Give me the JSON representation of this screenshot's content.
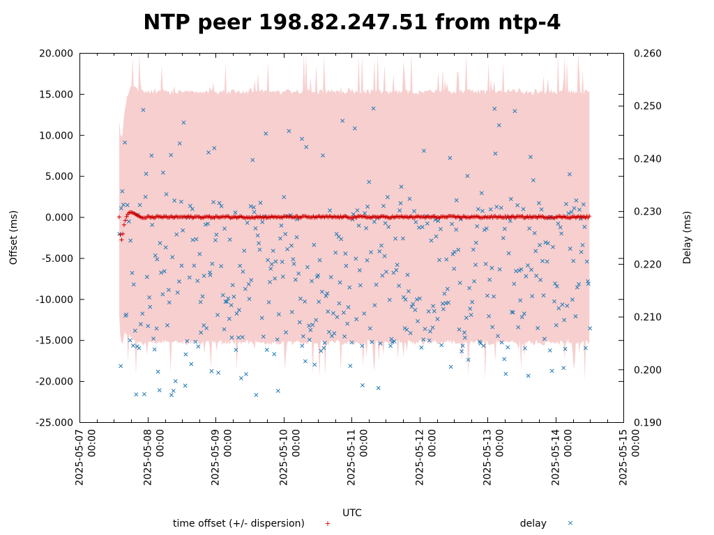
{
  "chart_data": {
    "type": "scatter",
    "title": "NTP peer 198.82.247.51 from ntp-4",
    "xlabel": "UTC",
    "ylabel": "Offset (ms)",
    "y2label": "Delay (ms)",
    "xlim": [
      "2025-05-07 00:00",
      "2025-05-15 00:00"
    ],
    "x_ticks": [
      {
        "date": "2025-05-07",
        "time": "00:00"
      },
      {
        "date": "2025-05-08",
        "time": "00:00"
      },
      {
        "date": "2025-05-09",
        "time": "00:00"
      },
      {
        "date": "2025-05-10",
        "time": "00:00"
      },
      {
        "date": "2025-05-11",
        "time": "00:00"
      },
      {
        "date": "2025-05-12",
        "time": "00:00"
      },
      {
        "date": "2025-05-13",
        "time": "00:00"
      },
      {
        "date": "2025-05-14",
        "time": "00:00"
      },
      {
        "date": "2025-05-15",
        "time": "00:00"
      }
    ],
    "ylim": [
      -25,
      20
    ],
    "y_ticks": [
      "20.000",
      "15.000",
      "10.000",
      "5.000",
      "0.000",
      "-5.000",
      "-10.000",
      "-15.000",
      "-20.000",
      "-25.000"
    ],
    "y2lim": [
      0.19,
      0.26
    ],
    "y2_ticks": [
      "0.260",
      "0.250",
      "0.240",
      "0.230",
      "0.220",
      "0.210",
      "0.200",
      "0.190"
    ],
    "grid": false,
    "legend_position": "bottom",
    "series": [
      {
        "name": "time offset (+/- dispersion)",
        "marker": "+",
        "color": "#cc0000",
        "band_color": "#f7cfcf",
        "axis": "left",
        "data_range": [
          "2025-05-07 14:00",
          "2025-05-14 12:00"
        ],
        "startup_points": [
          {
            "x": "2025-05-07 14:00",
            "y": 0.0
          },
          {
            "x": "2025-05-07 14:10",
            "y": -1.1
          },
          {
            "x": "2025-05-07 14:30",
            "y": -2.4
          },
          {
            "x": "2025-05-07 14:50",
            "y": -2.8
          },
          {
            "x": "2025-05-07 15:10",
            "y": -2.6
          },
          {
            "x": "2025-05-07 15:30",
            "y": -1.3
          },
          {
            "x": "2025-05-07 16:00",
            "y": -0.6
          },
          {
            "x": "2025-05-07 16:40",
            "y": 0.1
          },
          {
            "x": "2025-05-07 17:20",
            "y": 0.5
          },
          {
            "x": "2025-05-07 18:00",
            "y": 0.6
          },
          {
            "x": "2025-05-07 19:00",
            "y": 0.5
          },
          {
            "x": "2025-05-07 20:00",
            "y": 0.3
          },
          {
            "x": "2025-05-07 21:00",
            "y": 0.1
          },
          {
            "x": "2025-05-07 22:00",
            "y": -0.1
          },
          {
            "x": "2025-05-07 23:00",
            "y": -0.1
          },
          {
            "x": "2025-05-08 00:00",
            "y": -0.1
          }
        ],
        "steady_state_offset": 0.0,
        "dispersion_typical": 15.0,
        "dispersion_peak": 20.0
      },
      {
        "name": "delay",
        "marker": "x",
        "color": "#1f77b4",
        "axis": "right",
        "data_range": [
          "2025-05-07 14:00",
          "2025-05-14 12:00"
        ],
        "typical_range": [
          0.195,
          0.25
        ]
      }
    ]
  }
}
